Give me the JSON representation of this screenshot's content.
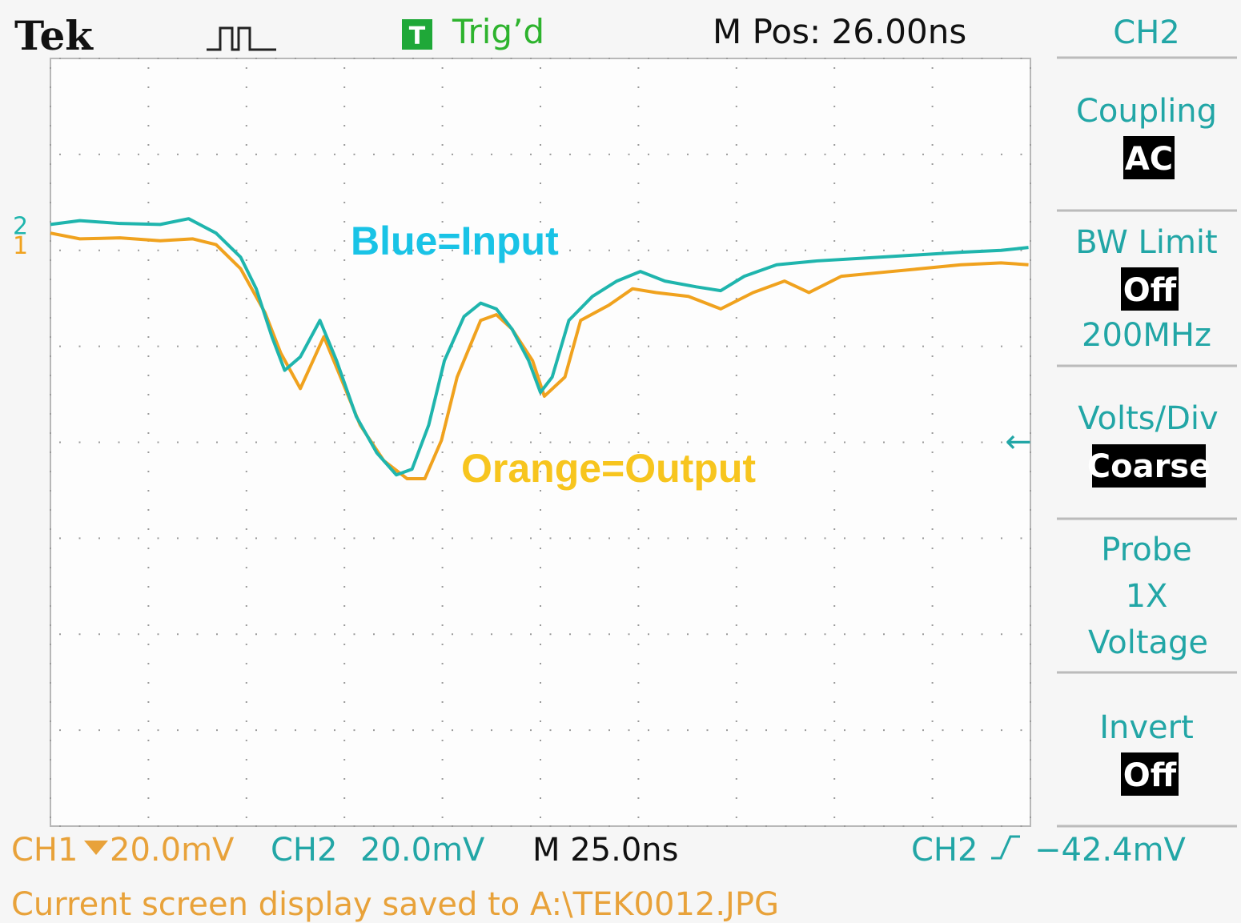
{
  "header": {
    "brand": "Tek",
    "trigger_icon": "T",
    "trigger_state": "Trig’d",
    "position": "M Pos: 26.00ns",
    "channel": "CH2"
  },
  "menu": [
    {
      "label": "Coupling",
      "value": "AC"
    },
    {
      "label": "BW Limit",
      "value": "Off",
      "detail": "200MHz"
    },
    {
      "label": "Volts/Div",
      "value": "Coarse"
    },
    {
      "label": "Probe",
      "value": "1X",
      "detail": "Voltage"
    },
    {
      "label": "Invert",
      "value": "Off"
    }
  ],
  "footer": {
    "ch1": "CH1",
    "ch1_scale": "20.0mV",
    "ch2": "CH2",
    "ch2_scale": "20.0mV",
    "timebase": "M 25.0ns",
    "trigger_channel": "CH2",
    "trigger_level": "−42.4mV",
    "status": "Current screen display saved to A:\\TEK0012.JPG"
  },
  "chart_data": {
    "type": "line",
    "annotations": [
      "Blue=Input",
      "Orange=Output"
    ],
    "channel_markers": [
      "2",
      "1"
    ],
    "xlim": [
      0,
      10
    ],
    "ylim": [
      -4,
      4
    ],
    "xticks": [
      0,
      1,
      2,
      3,
      4,
      5,
      6,
      7,
      8,
      9,
      10
    ],
    "yticks": [
      -4,
      -3,
      -2,
      -1,
      0,
      1,
      2,
      3,
      4
    ],
    "grid": true,
    "series": [
      {
        "name": "Blue=Input",
        "color": "#1fb5ad",
        "x": [
          0,
          0.3,
          0.71,
          1.12,
          1.41,
          1.69,
          1.94,
          2.1,
          2.26,
          2.39,
          2.55,
          2.75,
          2.92,
          3.12,
          3.33,
          3.53,
          3.69,
          3.86,
          4.02,
          4.22,
          4.39,
          4.55,
          4.71,
          4.88,
          5.0,
          5.12,
          5.29,
          5.53,
          5.78,
          6.02,
          6.27,
          6.59,
          6.84,
          7.08,
          7.41,
          7.82,
          8.31,
          8.8,
          9.29,
          9.7,
          9.98
        ],
        "values": [
          2.27,
          2.31,
          2.28,
          2.27,
          2.33,
          2.18,
          1.93,
          1.6,
          1.1,
          0.75,
          0.89,
          1.27,
          0.85,
          0.27,
          -0.11,
          -0.34,
          -0.28,
          0.18,
          0.85,
          1.31,
          1.45,
          1.39,
          1.18,
          0.85,
          0.52,
          0.68,
          1.27,
          1.52,
          1.68,
          1.78,
          1.68,
          1.62,
          1.58,
          1.73,
          1.85,
          1.89,
          1.92,
          1.95,
          1.98,
          2.0,
          2.03
        ]
      },
      {
        "name": "Orange=Output",
        "color": "#f0a21e",
        "x": [
          0,
          0.3,
          0.71,
          1.12,
          1.45,
          1.69,
          1.94,
          2.19,
          2.35,
          2.55,
          2.79,
          2.96,
          3.16,
          3.4,
          3.64,
          3.82,
          3.99,
          4.15,
          4.39,
          4.55,
          4.71,
          4.92,
          5.04,
          5.25,
          5.41,
          5.7,
          5.94,
          6.18,
          6.51,
          6.84,
          7.17,
          7.49,
          7.74,
          8.07,
          8.48,
          8.89,
          9.29,
          9.7,
          9.98
        ],
        "values": [
          2.18,
          2.12,
          2.13,
          2.1,
          2.12,
          2.06,
          1.81,
          1.35,
          0.93,
          0.56,
          1.1,
          0.68,
          0.18,
          -0.19,
          -0.38,
          -0.38,
          0.02,
          0.68,
          1.27,
          1.33,
          1.18,
          0.85,
          0.48,
          0.68,
          1.27,
          1.43,
          1.6,
          1.56,
          1.52,
          1.39,
          1.56,
          1.68,
          1.56,
          1.73,
          1.77,
          1.81,
          1.85,
          1.87,
          1.85
        ]
      }
    ]
  }
}
